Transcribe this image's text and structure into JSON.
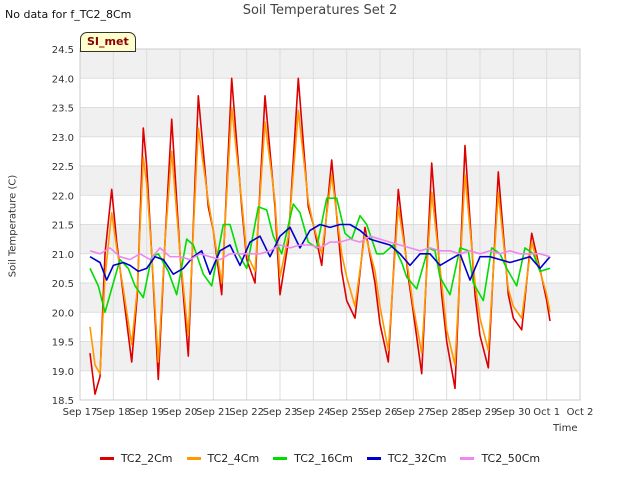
{
  "header": {
    "no_data_note": "No data for f_TC2_8Cm",
    "badge": "SI_met"
  },
  "chart_data": {
    "type": "line",
    "title": "Soil Temperatures Set 2",
    "xlabel": "Time",
    "ylabel": "Soil Temperature (C)",
    "ylim": [
      18.5,
      24.5
    ],
    "xlim": [
      "Sep 17",
      "Oct 2"
    ],
    "yticks": [
      "18.5",
      "19.0",
      "19.5",
      "20.0",
      "20.5",
      "21.0",
      "21.5",
      "22.0",
      "22.5",
      "23.0",
      "23.5",
      "24.0",
      "24.5"
    ],
    "xticks": [
      "Sep 17",
      "Sep 18",
      "Sep 19",
      "Sep 20",
      "Sep 21",
      "Sep 22",
      "Sep 23",
      "Sep 24",
      "Sep 25",
      "Sep 26",
      "Sep 27",
      "Sep 28",
      "Sep 29",
      "Sep 30",
      "Oct 1",
      "Oct 2"
    ],
    "grid": true,
    "legend_position": "bottom",
    "series": [
      {
        "name": "TC2_2Cm",
        "color": "#dd0000",
        "x": [
          0.3,
          0.45,
          0.6,
          0.75,
          0.95,
          1.1,
          1.3,
          1.55,
          1.72,
          1.9,
          2.0,
          2.15,
          2.35,
          2.55,
          2.75,
          3.0,
          3.25,
          3.55,
          3.85,
          4.0,
          4.25,
          4.55,
          4.85,
          5.0,
          5.25,
          5.55,
          5.85,
          6.0,
          6.25,
          6.55,
          6.85,
          7.0,
          7.25,
          7.55,
          7.85,
          8.0,
          8.25,
          8.55,
          8.85,
          9.0,
          9.25,
          9.55,
          9.85,
          10.0,
          10.25,
          10.55,
          10.85,
          11.0,
          11.25,
          11.55,
          11.85,
          12.0,
          12.25,
          12.55,
          12.85,
          13.0,
          13.25,
          13.55,
          13.85,
          14.0,
          14.1
        ],
        "values": [
          19.3,
          18.6,
          18.9,
          21.0,
          22.1,
          21.2,
          20.3,
          19.15,
          20.3,
          23.15,
          22.5,
          21.0,
          18.85,
          21.2,
          23.3,
          21.0,
          19.25,
          23.7,
          21.8,
          21.4,
          20.3,
          24.0,
          21.8,
          20.9,
          20.5,
          23.7,
          21.8,
          20.3,
          21.2,
          24.0,
          21.8,
          21.5,
          20.8,
          22.6,
          20.7,
          20.2,
          19.9,
          21.45,
          20.5,
          19.8,
          19.15,
          22.1,
          20.6,
          20.0,
          18.95,
          22.55,
          20.3,
          19.5,
          18.7,
          22.85,
          20.3,
          19.6,
          19.05,
          22.4,
          20.3,
          19.9,
          19.7,
          21.35,
          20.6,
          20.2,
          19.85
        ]
      },
      {
        "name": "TC2_4Cm",
        "color": "#ff9900",
        "x": [
          0.3,
          0.45,
          0.6,
          0.75,
          0.95,
          1.1,
          1.3,
          1.55,
          1.72,
          1.9,
          2.0,
          2.15,
          2.35,
          2.55,
          2.75,
          3.0,
          3.25,
          3.55,
          3.85,
          4.0,
          4.25,
          4.55,
          4.85,
          5.0,
          5.25,
          5.55,
          5.85,
          6.0,
          6.25,
          6.55,
          6.85,
          7.0,
          7.25,
          7.55,
          7.85,
          8.0,
          8.25,
          8.55,
          8.85,
          9.0,
          9.25,
          9.55,
          9.85,
          10.0,
          10.25,
          10.55,
          10.85,
          11.0,
          11.25,
          11.55,
          11.85,
          12.0,
          12.25,
          12.55,
          12.85,
          13.0,
          13.25,
          13.55,
          13.85,
          14.0,
          14.1
        ],
        "values": [
          19.75,
          19.1,
          18.95,
          20.6,
          21.7,
          21.1,
          20.4,
          19.45,
          20.4,
          22.65,
          22.2,
          21.0,
          19.15,
          21.2,
          22.75,
          21.0,
          19.6,
          23.15,
          21.9,
          21.4,
          20.5,
          23.5,
          21.9,
          21.0,
          20.7,
          23.25,
          21.9,
          20.6,
          21.3,
          23.45,
          21.9,
          21.5,
          21.0,
          22.35,
          21.0,
          20.6,
          20.1,
          21.35,
          20.7,
          20.1,
          19.35,
          21.8,
          20.7,
          20.1,
          19.3,
          22.05,
          20.5,
          19.7,
          19.1,
          22.35,
          20.5,
          19.9,
          19.35,
          22.05,
          20.4,
          20.1,
          19.9,
          21.2,
          20.6,
          20.3,
          20.0
        ]
      },
      {
        "name": "TC2_16Cm",
        "color": "#00dd00",
        "x": [
          0.3,
          0.55,
          0.75,
          1.0,
          1.2,
          1.45,
          1.65,
          1.9,
          2.15,
          2.35,
          2.65,
          2.9,
          3.2,
          3.4,
          3.7,
          3.95,
          4.3,
          4.5,
          4.75,
          5.0,
          5.35,
          5.6,
          5.8,
          6.05,
          6.4,
          6.6,
          6.85,
          7.1,
          7.4,
          7.7,
          7.95,
          8.15,
          8.4,
          8.6,
          8.9,
          9.1,
          9.4,
          9.65,
          9.8,
          10.1,
          10.45,
          10.65,
          10.8,
          11.1,
          11.4,
          11.65,
          11.8,
          12.1,
          12.35,
          12.6,
          12.8,
          13.1,
          13.35,
          13.6,
          13.8,
          14.1
        ],
        "values": [
          20.75,
          20.45,
          20.0,
          20.5,
          20.9,
          20.75,
          20.45,
          20.25,
          20.95,
          21.0,
          20.7,
          20.3,
          21.25,
          21.15,
          20.65,
          20.45,
          21.5,
          21.5,
          21.0,
          20.75,
          21.8,
          21.75,
          21.3,
          21.0,
          21.85,
          21.7,
          21.2,
          21.1,
          21.95,
          21.95,
          21.35,
          21.25,
          21.65,
          21.5,
          21.0,
          21.0,
          21.15,
          20.85,
          20.6,
          20.4,
          21.1,
          21.05,
          20.6,
          20.3,
          21.1,
          21.05,
          20.5,
          20.2,
          21.1,
          21.0,
          20.75,
          20.45,
          21.1,
          21.0,
          20.7,
          20.75
        ]
      },
      {
        "name": "TC2_32Cm",
        "color": "#0000cc",
        "x": [
          0.3,
          0.6,
          0.8,
          1.0,
          1.3,
          1.5,
          1.75,
          2.0,
          2.25,
          2.5,
          2.8,
          3.1,
          3.4,
          3.65,
          3.9,
          4.2,
          4.5,
          4.8,
          5.1,
          5.4,
          5.7,
          6.0,
          6.3,
          6.6,
          6.9,
          7.2,
          7.5,
          7.8,
          8.1,
          8.4,
          8.7,
          9.0,
          9.3,
          9.6,
          9.9,
          10.2,
          10.5,
          10.8,
          11.1,
          11.4,
          11.7,
          12.0,
          12.3,
          12.6,
          12.9,
          13.2,
          13.5,
          13.8,
          14.1
        ],
        "values": [
          20.95,
          20.85,
          20.55,
          20.8,
          20.85,
          20.8,
          20.7,
          20.75,
          20.95,
          20.9,
          20.65,
          20.75,
          20.95,
          21.05,
          20.65,
          21.05,
          21.15,
          20.8,
          21.2,
          21.3,
          20.95,
          21.3,
          21.45,
          21.1,
          21.4,
          21.5,
          21.45,
          21.5,
          21.5,
          21.4,
          21.25,
          21.2,
          21.15,
          21.0,
          20.8,
          21.0,
          21.0,
          20.8,
          20.9,
          21.0,
          20.55,
          20.95,
          20.95,
          20.9,
          20.85,
          20.9,
          20.95,
          20.75,
          20.95
        ]
      },
      {
        "name": "TC2_50Cm",
        "color": "#ee88ee",
        "x": [
          0.3,
          0.6,
          0.9,
          1.2,
          1.5,
          1.8,
          2.1,
          2.4,
          2.7,
          3.0,
          3.3,
          3.6,
          3.9,
          4.2,
          4.5,
          4.8,
          5.1,
          5.4,
          5.7,
          6.0,
          6.3,
          6.6,
          6.9,
          7.2,
          7.5,
          7.8,
          8.1,
          8.4,
          8.7,
          9.0,
          9.3,
          9.6,
          9.9,
          10.2,
          10.5,
          10.8,
          11.1,
          11.4,
          11.7,
          12.0,
          12.3,
          12.6,
          12.9,
          13.2,
          13.5,
          13.8,
          14.1
        ],
        "values": [
          21.05,
          21.0,
          21.1,
          20.95,
          20.9,
          21.0,
          20.9,
          21.1,
          20.95,
          20.95,
          20.9,
          21.0,
          20.95,
          20.9,
          21.0,
          21.0,
          21.0,
          21.0,
          21.05,
          21.15,
          21.1,
          21.15,
          21.15,
          21.1,
          21.2,
          21.2,
          21.25,
          21.2,
          21.3,
          21.25,
          21.2,
          21.15,
          21.1,
          21.05,
          21.1,
          21.05,
          21.05,
          21.0,
          21.05,
          21.0,
          21.05,
          21.0,
          21.05,
          21.0,
          21.0,
          21.0,
          20.95
        ]
      }
    ]
  }
}
